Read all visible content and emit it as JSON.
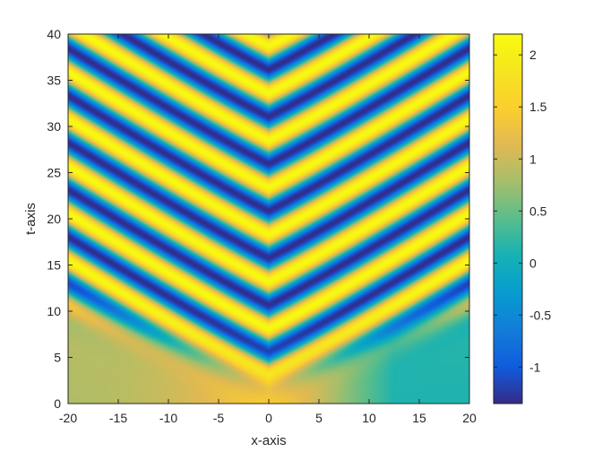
{
  "chart_data": {
    "type": "heatmap",
    "title": "",
    "xlabel": "x-axis",
    "ylabel": "t-axis",
    "xlim": [
      -20,
      20
    ],
    "ylim": [
      0,
      40
    ],
    "x_ticks": [
      -20,
      -15,
      -10,
      -5,
      0,
      5,
      10,
      15,
      20
    ],
    "x_tick_labels": [
      "-20",
      "-15",
      "-10",
      "-5",
      "0",
      "5",
      "10",
      "15",
      "20"
    ],
    "y_ticks": [
      0,
      5,
      10,
      15,
      20,
      25,
      30,
      35,
      40
    ],
    "y_tick_labels": [
      "0",
      "5",
      "10",
      "15",
      "20",
      "25",
      "30",
      "35",
      "40"
    ],
    "colorbar": {
      "colormap": "parula",
      "clim": [
        -1.35,
        2.2
      ],
      "ticks": [
        -1,
        -0.5,
        0,
        0.5,
        1,
        1.5,
        2
      ],
      "tick_labels": [
        "-1",
        "-0.5",
        "0",
        "0.5",
        "1",
        "1.5",
        "2"
      ]
    },
    "field": {
      "description": "Oscillatory stripes bending upward toward |x|=20 (V-shaped front), smooth background below the front",
      "stripe_period_t": 5.1,
      "stripe_amplitude": 1.75,
      "stripe_center_value": 0.42,
      "front_t_at_x0": 3.0,
      "front_slope": 0.4,
      "background_left_value": 0.85,
      "background_center_value": 1.55,
      "background_right_value": 0.12
    },
    "grid": false,
    "box": true
  },
  "colors": {
    "axis": "#262626",
    "background": "#ffffff"
  }
}
